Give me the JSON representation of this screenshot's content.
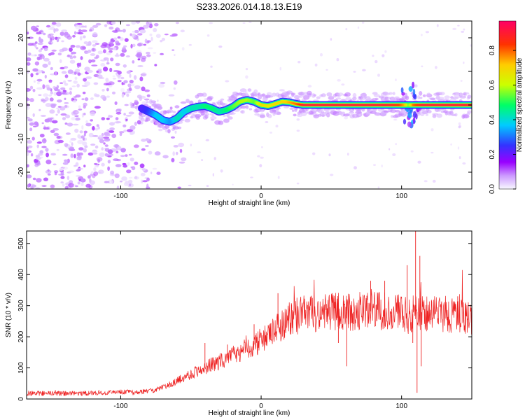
{
  "title": "S233.2026.014.18.13.E19",
  "chart_data": [
    {
      "type": "heatmap",
      "name": "spectrogram",
      "xlabel": "Height of straight line (km)",
      "ylabel": "Frequency (Hz)",
      "xlim": [
        -167,
        150
      ],
      "ylim": [
        -25,
        25
      ],
      "xticks": [
        -100,
        0,
        100
      ],
      "yticks": [
        -20,
        -10,
        0,
        10,
        20
      ],
      "colorbar": {
        "label": "Normalized spectral amplitude",
        "range": [
          0,
          0.97
        ],
        "ticks": [
          0.0,
          0.2,
          0.4,
          0.6,
          0.8
        ],
        "stops": [
          "#f8f8ff",
          "#cc99ff",
          "#9900ff",
          "#3333ff",
          "#00ccff",
          "#00ff66",
          "#ccff00",
          "#ffcc00",
          "#ff3300",
          "#ff0066"
        ]
      },
      "noise_region_x": [
        -167,
        -80
      ],
      "ridge": {
        "x": [
          -85,
          -80,
          -75,
          -70,
          -65,
          -60,
          -55,
          -50,
          -45,
          -40,
          -35,
          -30,
          -25,
          -20,
          -15,
          -10,
          -5,
          0,
          5,
          10,
          15,
          20,
          25,
          30,
          40,
          50,
          60,
          70,
          80,
          90,
          98,
          102,
          105,
          108,
          115,
          125,
          135,
          150
        ],
        "y": [
          -1,
          -2,
          -3,
          -4.5,
          -5,
          -4,
          -2,
          -1,
          -0.5,
          -0.3,
          -1,
          -2,
          -1.5,
          -0.5,
          1,
          1.5,
          1,
          0,
          -0.3,
          0.3,
          1,
          0.8,
          0.3,
          0,
          0,
          0,
          0,
          0,
          0,
          0,
          0,
          0,
          0,
          0,
          0,
          0,
          0,
          0
        ],
        "amplitude": [
          0.3,
          0.35,
          0.45,
          0.45,
          0.4,
          0.5,
          0.45,
          0.5,
          0.5,
          0.55,
          0.55,
          0.5,
          0.55,
          0.6,
          0.65,
          0.65,
          0.6,
          0.75,
          0.7,
          0.75,
          0.75,
          0.8,
          0.85,
          0.95,
          0.95,
          0.95,
          0.95,
          0.95,
          0.95,
          0.95,
          0.9,
          0.8,
          0.6,
          0.85,
          0.95,
          0.95,
          0.95,
          0.95
        ]
      }
    },
    {
      "type": "line",
      "name": "snr",
      "xlabel": "Height of straight line (km)",
      "ylabel": "SNR (10 * v/v)",
      "xlim": [
        -167,
        150
      ],
      "ylim": [
        0,
        540
      ],
      "xticks": [
        -100,
        0,
        100
      ],
      "yticks": [
        0,
        100,
        200,
        300,
        400,
        500
      ],
      "color": "#ee2222",
      "trend": {
        "x": [
          -167,
          -130,
          -100,
          -85,
          -75,
          -65,
          -55,
          -45,
          -35,
          -25,
          -15,
          -5,
          5,
          15,
          25,
          30,
          40,
          50,
          60,
          70,
          80,
          90,
          100,
          105,
          110,
          115,
          120,
          130,
          140,
          150
        ],
        "y": [
          18,
          18,
          22,
          22,
          30,
          45,
          70,
          90,
          110,
          130,
          150,
          175,
          200,
          240,
          270,
          270,
          275,
          280,
          280,
          280,
          282,
          285,
          280,
          260,
          280,
          280,
          275,
          275,
          265,
          260
        ]
      },
      "spikes": {
        "x": [
          -40,
          -24,
          -5,
          12,
          55,
          61,
          78,
          88,
          104,
          108,
          110,
          111,
          113,
          114,
          140
        ],
        "y": [
          180,
          175,
          240,
          340,
          180,
          105,
          380,
          380,
          430,
          180,
          540,
          20,
          460,
          105,
          330
        ]
      }
    }
  ]
}
